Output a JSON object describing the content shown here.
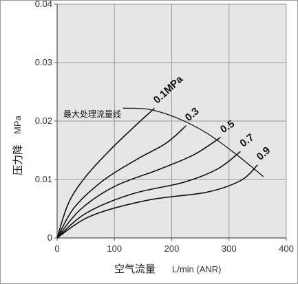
{
  "chart_data": {
    "type": "line",
    "xlabel": "空气流量",
    "xlabel_unit": "L/min (ANR)",
    "ylabel": "压力降",
    "ylabel_unit": "MPa",
    "xlim": [
      0,
      400
    ],
    "ylim": [
      0,
      0.04
    ],
    "x_ticks": [
      "0",
      "100",
      "200",
      "300",
      "400"
    ],
    "y_ticks": [
      "0",
      "0.01",
      "0.02",
      "0.03",
      "0.04"
    ],
    "grid": true,
    "background": "#e6e6e6",
    "line_color": "#111111",
    "series": [
      {
        "name": "0.1MPa",
        "x": [
          0,
          20,
          50,
          90,
          130,
          170
        ],
        "y": [
          0,
          0.006,
          0.0105,
          0.0148,
          0.0186,
          0.0222
        ]
      },
      {
        "name": "0.3",
        "x": [
          0,
          30,
          80,
          140,
          190,
          225
        ],
        "y": [
          0,
          0.0052,
          0.0098,
          0.0135,
          0.0162,
          0.0192
        ]
      },
      {
        "name": "0.5",
        "x": [
          0,
          40,
          100,
          180,
          240,
          285
        ],
        "y": [
          0,
          0.0048,
          0.0088,
          0.0118,
          0.0143,
          0.0172
        ]
      },
      {
        "name": "0.7",
        "x": [
          0,
          50,
          130,
          220,
          280,
          320
        ],
        "y": [
          0,
          0.0042,
          0.0075,
          0.0095,
          0.0118,
          0.0148
        ]
      },
      {
        "name": "0.9",
        "x": [
          0,
          60,
          160,
          260,
          320,
          350
        ],
        "y": [
          0,
          0.0038,
          0.0065,
          0.0078,
          0.0098,
          0.0125
        ]
      }
    ],
    "max_flow_line": {
      "label": "最大处理流量线",
      "x": [
        115,
        160,
        210,
        260,
        310,
        360
      ],
      "y": [
        0.0222,
        0.022,
        0.0205,
        0.018,
        0.0145,
        0.0105
      ]
    }
  }
}
